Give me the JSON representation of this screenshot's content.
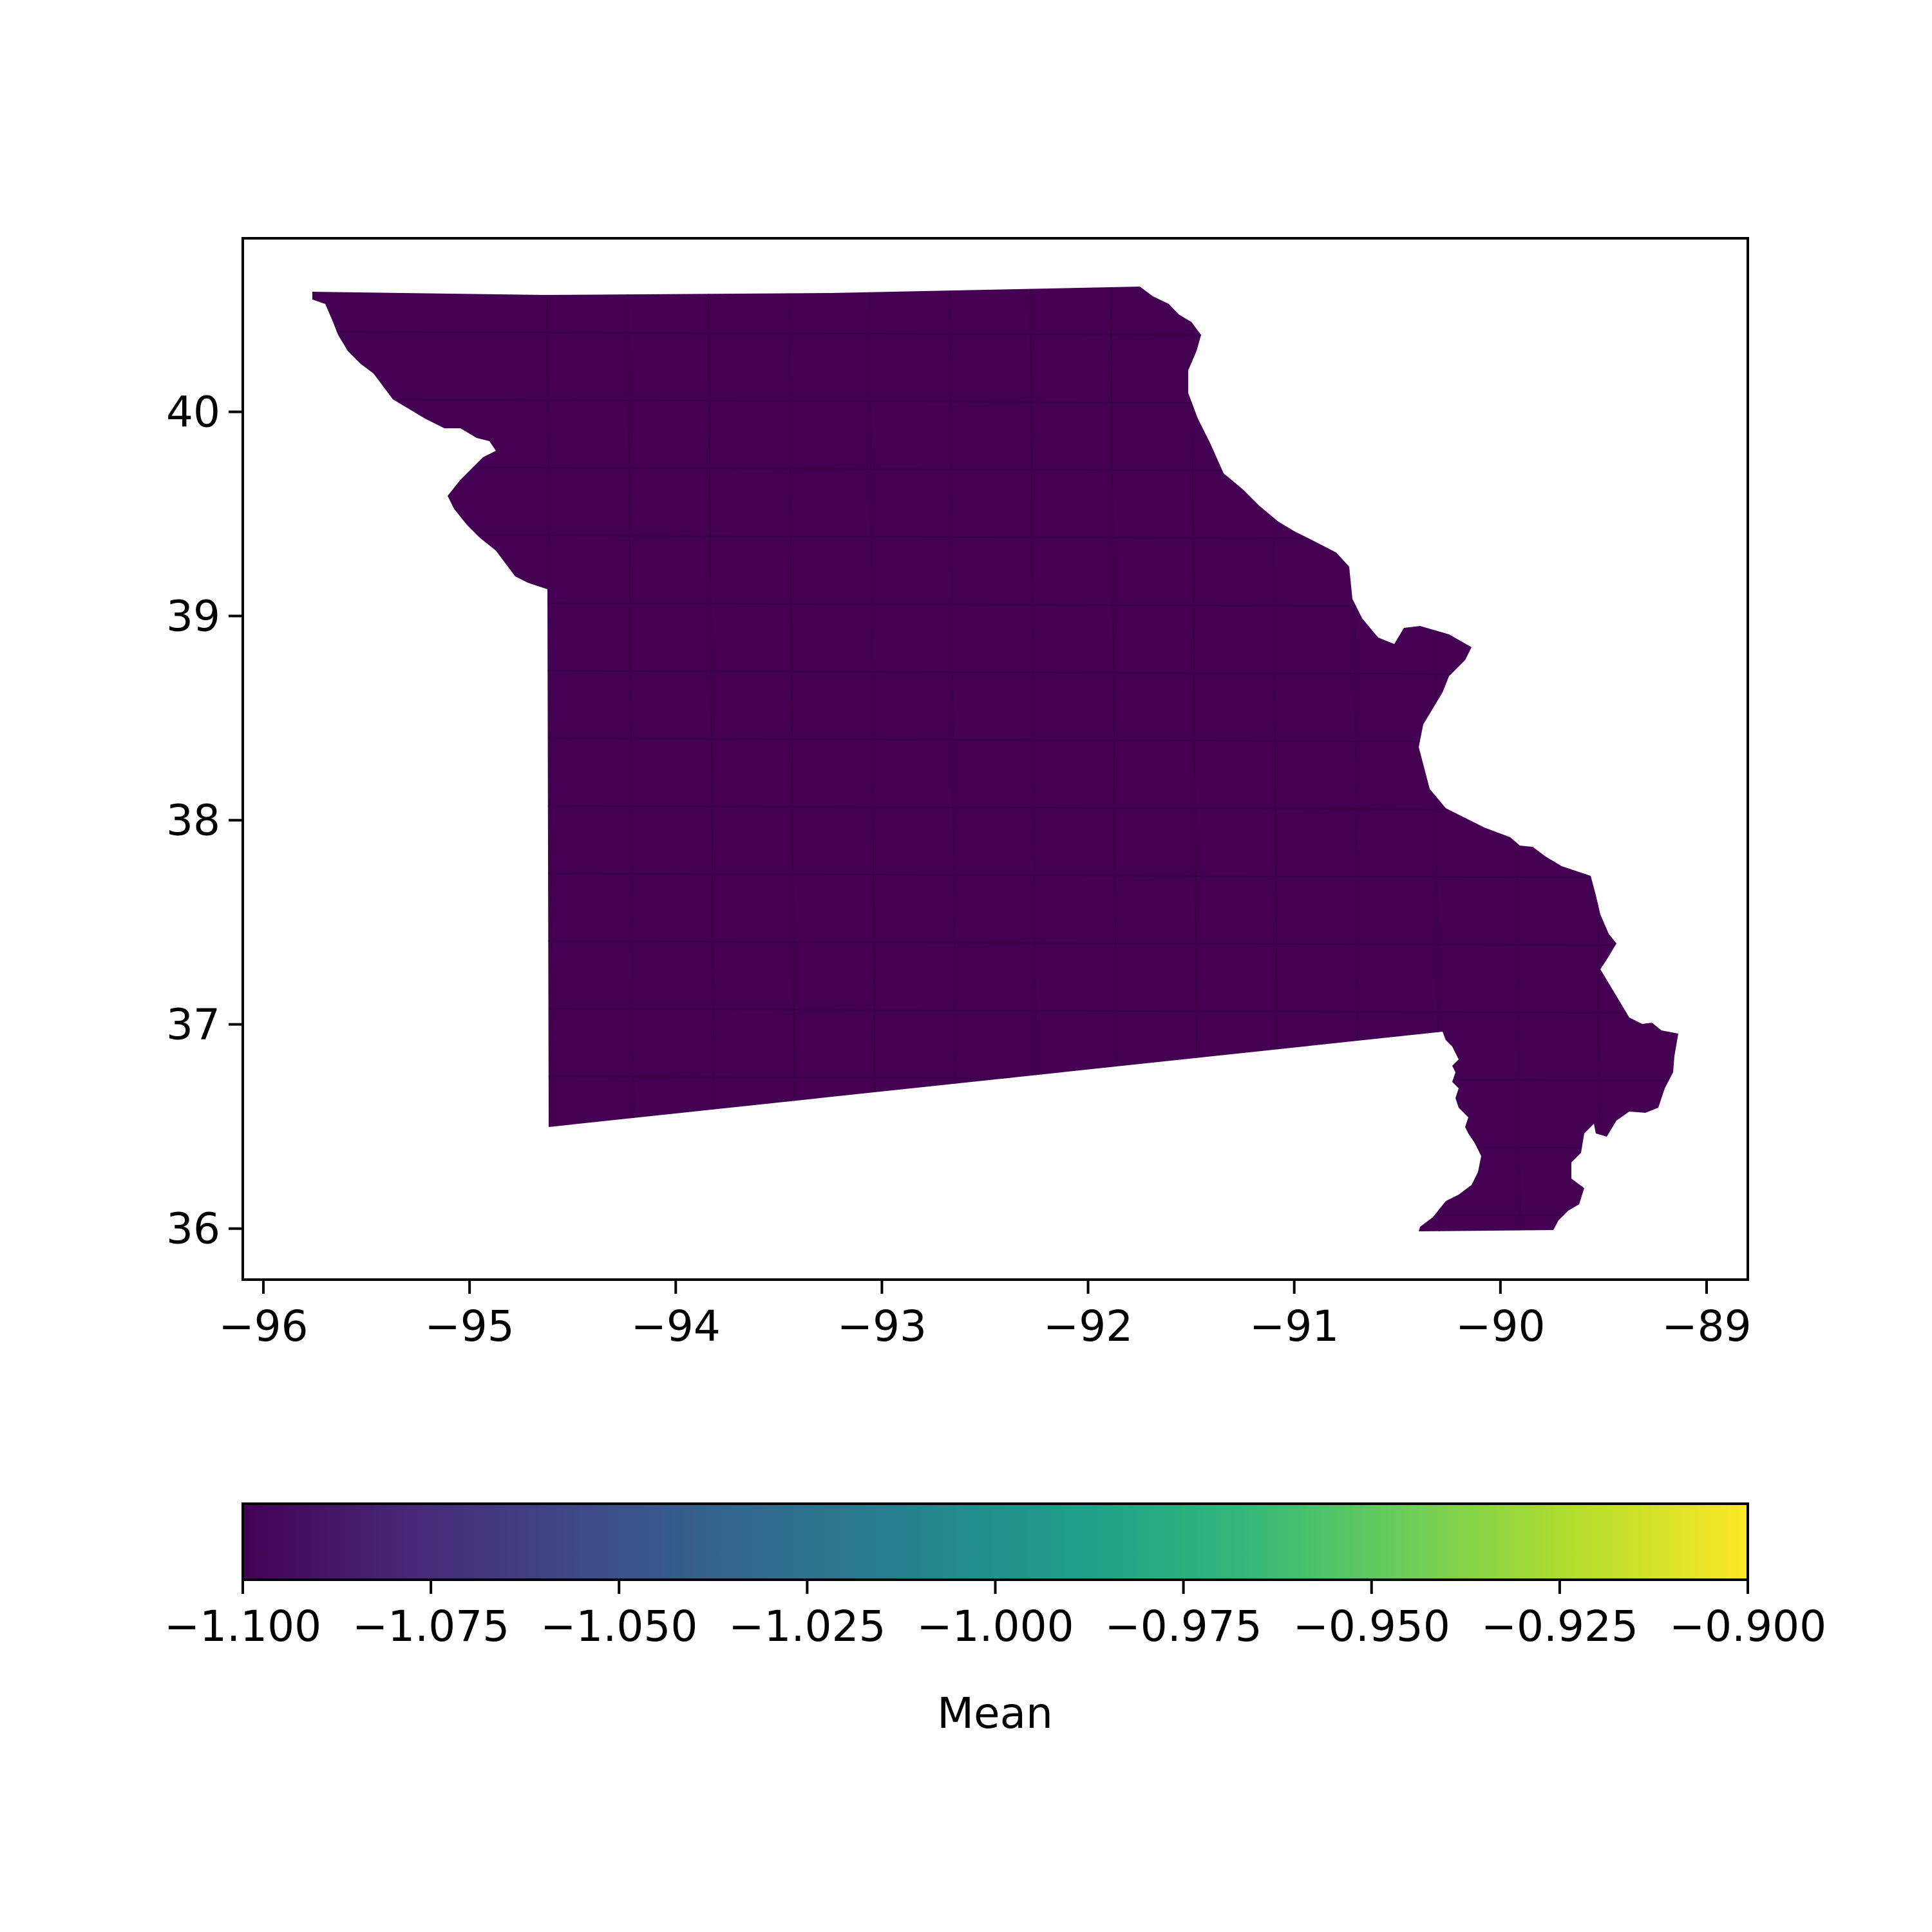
{
  "map": {
    "state_fill": "#440154",
    "county_border_color": "#3a0148",
    "x_ticks": [
      "−96",
      "−95",
      "−94",
      "−93",
      "−92",
      "−91",
      "−90",
      "−89"
    ],
    "y_ticks": [
      "36",
      "37",
      "38",
      "39",
      "40"
    ],
    "x_range": [
      -96.1,
      -88.8
    ],
    "y_range": [
      35.75,
      40.85
    ]
  },
  "colorbar": {
    "label": "Mean",
    "colormap": "viridis",
    "range": [
      -1.1,
      -0.9
    ],
    "ticks": [
      "−1.100",
      "−1.075",
      "−1.050",
      "−1.025",
      "−1.000",
      "−0.975",
      "−0.950",
      "−0.925",
      "−0.900"
    ],
    "colors": [
      "#440154",
      "#482878",
      "#3e4989",
      "#31688e",
      "#26828e",
      "#1f9e89",
      "#35b779",
      "#6ece58",
      "#b5de2b",
      "#fde725"
    ]
  }
}
